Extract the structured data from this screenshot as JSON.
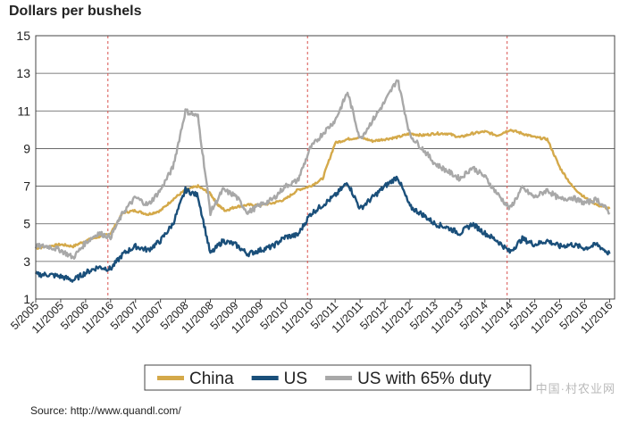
{
  "chart_data": {
    "type": "line",
    "title": "Dollars per bushels",
    "source": "Source: http://www.quandl.com/",
    "watermark": "中国·村农业网",
    "ylabel": "Dollars per bushels",
    "xlabel": "",
    "ylim": [
      1,
      15
    ],
    "yticks": [
      1,
      3,
      5,
      7,
      9,
      11,
      13,
      15
    ],
    "grid": true,
    "legend_position": "bottom",
    "x_tick_labels": [
      "5/2005",
      "11/2005",
      "5/2006",
      "11/2016",
      "5/2007",
      "11/2007",
      "5/2008",
      "11/2008",
      "5/2009",
      "11/2009",
      "5/2010",
      "11/2010",
      "5/2011",
      "11/2011",
      "5/2012",
      "11/2012",
      "5/2013",
      "11/2013",
      "5/2014",
      "11/2014",
      "5/2015",
      "11/2015",
      "5/2016",
      "11/2016"
    ],
    "vertical_markers": [
      "11/2016 (2006)",
      "11/2010",
      "11/2014"
    ],
    "x_range": [
      0,
      23.2
    ],
    "series": [
      {
        "name": "China",
        "color": "#d4a94a",
        "x": [
          0,
          0.5,
          1,
          1.5,
          2,
          2.5,
          3,
          3.5,
          4,
          4.5,
          5,
          5.5,
          6,
          6.5,
          7,
          7.3,
          7.6,
          8,
          8.5,
          9,
          9.5,
          10,
          10.5,
          11,
          11.5,
          12,
          12.5,
          13,
          13.5,
          14,
          14.5,
          15,
          15.5,
          16,
          16.5,
          17,
          17.5,
          18,
          18.5,
          19,
          19.5,
          20,
          20.5,
          21,
          21.5,
          22,
          22.5,
          23
        ],
        "values": [
          3.7,
          3.8,
          3.9,
          3.8,
          4.1,
          4.3,
          4.5,
          5.6,
          5.7,
          5.5,
          5.7,
          6.3,
          6.8,
          7.0,
          6.6,
          6.0,
          5.7,
          5.9,
          6.0,
          6.0,
          6.1,
          6.3,
          6.8,
          7.0,
          7.4,
          9.3,
          9.5,
          9.6,
          9.4,
          9.5,
          9.6,
          9.8,
          9.7,
          9.8,
          9.8,
          9.6,
          9.8,
          9.9,
          9.7,
          10.0,
          9.8,
          9.6,
          9.5,
          8.0,
          7.0,
          6.4,
          6.0,
          5.8
        ]
      },
      {
        "name": "US",
        "color": "#1a4f7a",
        "x": [
          0,
          0.5,
          1,
          1.5,
          2,
          2.5,
          3,
          3.5,
          4,
          4.5,
          5,
          5.5,
          6,
          6.5,
          7,
          7.5,
          8,
          8.5,
          9,
          9.5,
          10,
          10.5,
          11,
          11.5,
          12,
          12.5,
          13,
          13.5,
          14,
          14.5,
          15,
          15.5,
          16,
          16.5,
          17,
          17.5,
          18,
          18.5,
          19,
          19.5,
          20,
          20.5,
          21,
          21.5,
          22,
          22.5,
          23
        ],
        "values": [
          2.3,
          2.3,
          2.2,
          2.0,
          2.4,
          2.7,
          2.6,
          3.4,
          3.8,
          3.6,
          4.1,
          5.0,
          6.8,
          6.5,
          3.4,
          4.1,
          3.9,
          3.4,
          3.6,
          3.8,
          4.3,
          4.4,
          5.5,
          6.0,
          6.5,
          7.2,
          5.8,
          6.4,
          7.0,
          7.5,
          5.9,
          5.5,
          5.0,
          4.8,
          4.5,
          5.0,
          4.5,
          4.1,
          3.5,
          4.2,
          3.9,
          4.1,
          3.8,
          3.9,
          3.7,
          3.9,
          3.4
        ]
      },
      {
        "name": "US with 65% duty",
        "color": "#a8a8a8",
        "x": [
          0,
          0.5,
          1,
          1.5,
          2,
          2.5,
          3,
          3.5,
          4,
          4.5,
          5,
          5.5,
          6,
          6.5,
          7,
          7.5,
          8,
          8.5,
          9,
          9.5,
          10,
          10.5,
          11,
          11.5,
          12,
          12.5,
          13,
          13.5,
          14,
          14.5,
          15,
          15.5,
          16,
          16.5,
          17,
          17.5,
          18,
          18.5,
          19,
          19.5,
          20,
          20.5,
          21,
          21.5,
          22,
          22.5,
          23
        ],
        "values": [
          3.8,
          3.8,
          3.6,
          3.2,
          4.0,
          4.5,
          4.3,
          5.6,
          6.4,
          6.0,
          6.8,
          8.0,
          11.0,
          10.7,
          5.6,
          6.8,
          6.5,
          5.6,
          6.0,
          6.3,
          7.0,
          7.3,
          9.0,
          9.8,
          10.5,
          12.0,
          9.5,
          10.5,
          11.5,
          12.7,
          9.7,
          9.0,
          8.2,
          7.8,
          7.4,
          8.0,
          7.5,
          6.6,
          5.8,
          6.9,
          6.4,
          6.8,
          6.3,
          6.4,
          6.1,
          6.3,
          5.6
        ]
      }
    ]
  }
}
